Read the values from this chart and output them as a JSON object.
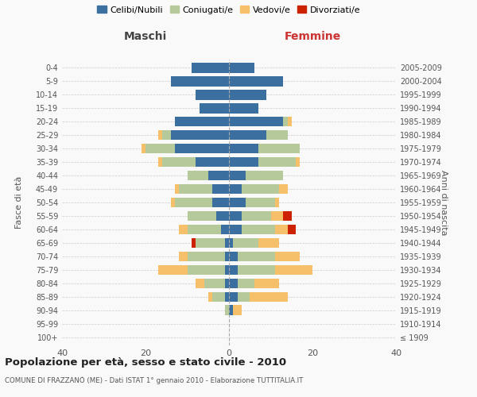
{
  "age_groups": [
    "100+",
    "95-99",
    "90-94",
    "85-89",
    "80-84",
    "75-79",
    "70-74",
    "65-69",
    "60-64",
    "55-59",
    "50-54",
    "45-49",
    "40-44",
    "35-39",
    "30-34",
    "25-29",
    "20-24",
    "15-19",
    "10-14",
    "5-9",
    "0-4"
  ],
  "birth_years": [
    "≤ 1909",
    "1910-1914",
    "1915-1919",
    "1920-1924",
    "1925-1929",
    "1930-1934",
    "1935-1939",
    "1940-1944",
    "1945-1949",
    "1950-1954",
    "1955-1959",
    "1960-1964",
    "1965-1969",
    "1970-1974",
    "1975-1979",
    "1980-1984",
    "1985-1989",
    "1990-1994",
    "1995-1999",
    "2000-2004",
    "2005-2009"
  ],
  "maschi": {
    "celibi": [
      0,
      0,
      0,
      1,
      1,
      1,
      1,
      1,
      2,
      3,
      4,
      4,
      5,
      8,
      13,
      14,
      13,
      7,
      8,
      14,
      9
    ],
    "coniugati": [
      0,
      0,
      1,
      3,
      5,
      9,
      9,
      7,
      8,
      7,
      9,
      8,
      5,
      8,
      7,
      2,
      0,
      0,
      0,
      0,
      0
    ],
    "vedovi": [
      0,
      0,
      0,
      1,
      2,
      7,
      2,
      0,
      2,
      0,
      1,
      1,
      0,
      1,
      1,
      1,
      0,
      0,
      0,
      0,
      0
    ],
    "divorziati": [
      0,
      0,
      0,
      0,
      0,
      0,
      0,
      1,
      0,
      0,
      0,
      0,
      0,
      0,
      0,
      0,
      0,
      0,
      0,
      0,
      0
    ]
  },
  "femmine": {
    "nubili": [
      0,
      0,
      1,
      2,
      2,
      2,
      2,
      1,
      3,
      3,
      4,
      3,
      4,
      7,
      7,
      9,
      13,
      7,
      9,
      13,
      6
    ],
    "coniugate": [
      0,
      0,
      0,
      3,
      4,
      9,
      9,
      6,
      8,
      7,
      7,
      9,
      9,
      9,
      10,
      5,
      1,
      0,
      0,
      0,
      0
    ],
    "vedove": [
      0,
      0,
      2,
      9,
      6,
      9,
      6,
      5,
      3,
      3,
      1,
      2,
      0,
      1,
      0,
      0,
      1,
      0,
      0,
      0,
      0
    ],
    "divorziate": [
      0,
      0,
      0,
      0,
      0,
      0,
      0,
      0,
      2,
      2,
      0,
      0,
      0,
      0,
      0,
      0,
      0,
      0,
      0,
      0,
      0
    ]
  },
  "colors": {
    "celibi": "#3b6fa0",
    "coniugati": "#b5c99a",
    "vedovi": "#f5c069",
    "divorziati": "#cc2200"
  },
  "xlim": [
    -40,
    40
  ],
  "xlabel_left": "Maschi",
  "xlabel_right": "Femmine",
  "ylabel_left": "Fasce di età",
  "ylabel_right": "Anni di nascita",
  "title": "Popolazione per età, sesso e stato civile - 2010",
  "subtitle": "COMUNE DI FRAZZANÒ (ME) - Dati ISTAT 1° gennaio 2010 - Elaborazione TUTTITALIA.IT",
  "legend_labels": [
    "Celibi/Nubili",
    "Coniugati/e",
    "Vedovi/e",
    "Divorziati/e"
  ],
  "background_color": "#f9f9f9",
  "grid_color": "#cccccc"
}
